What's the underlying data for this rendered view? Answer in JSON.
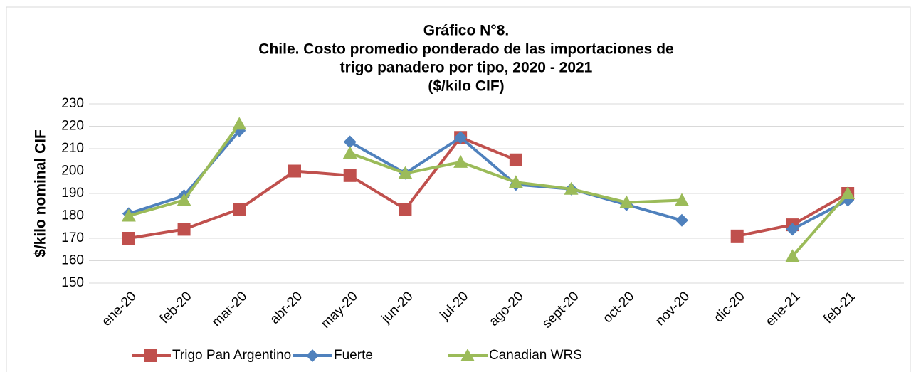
{
  "chart_data": {
    "type": "line",
    "title": [
      "Gráfico N°8.",
      "Chile. Costo promedio ponderado de las importaciones de",
      "trigo panadero por tipo, 2020 - 2021",
      "($/kilo CIF)"
    ],
    "ylabel": "$/kilo nominal CIF",
    "categories": [
      "ene-20",
      "feb-20",
      "mar-20",
      "abr-20",
      "may-20",
      "jun-20",
      "jul-20",
      "ago-20",
      "sept-20",
      "oct-20",
      "nov-20",
      "dic-20",
      "ene-21",
      "feb-21"
    ],
    "series": [
      {
        "name": "Trigo Pan Argentino",
        "color": "#c0504d",
        "marker": "square",
        "values": [
          170,
          174,
          183,
          200,
          198,
          183,
          215,
          205,
          null,
          null,
          null,
          171,
          176,
          190
        ]
      },
      {
        "name": "Fuerte",
        "color": "#4f81bd",
        "marker": "diamond",
        "values": [
          181,
          189,
          218,
          null,
          213,
          199,
          215,
          194,
          192,
          185,
          178,
          null,
          174,
          187
        ]
      },
      {
        "name": "Canadian WRS",
        "color": "#9bbb59",
        "marker": "triangle",
        "values": [
          180,
          187,
          221,
          null,
          208,
          199,
          204,
          195,
          192,
          186,
          187,
          null,
          162,
          190
        ]
      }
    ],
    "ylim": [
      150,
      230
    ],
    "yticks": [
      150,
      160,
      170,
      180,
      190,
      200,
      210,
      220,
      230
    ],
    "grid": true,
    "legend": "bottom"
  }
}
